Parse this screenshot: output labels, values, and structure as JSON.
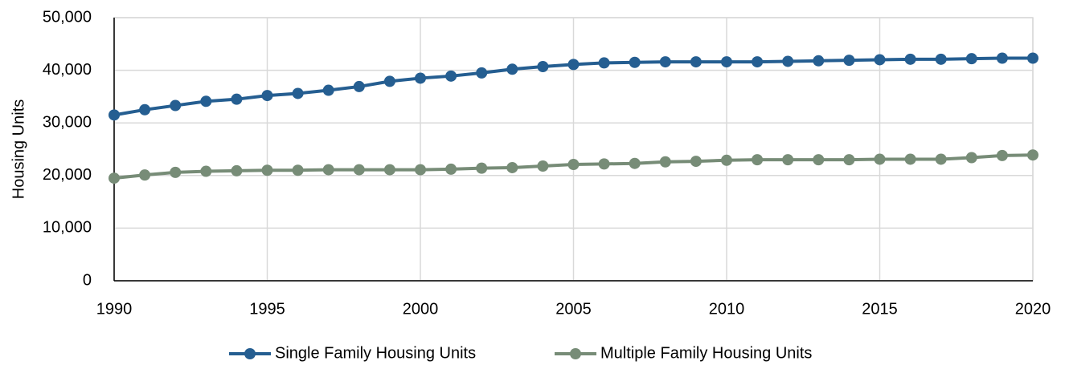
{
  "chart_data": {
    "type": "line",
    "y_label": "Housing Units",
    "x": [
      1990,
      1991,
      1992,
      1993,
      1994,
      1995,
      1996,
      1997,
      1998,
      1999,
      2000,
      2001,
      2002,
      2003,
      2004,
      2005,
      2006,
      2007,
      2008,
      2009,
      2010,
      2011,
      2012,
      2013,
      2014,
      2015,
      2016,
      2017,
      2018,
      2019,
      2020
    ],
    "series": [
      {
        "name": "Single Family Housing Units",
        "color": "#255e91",
        "values": [
          31500,
          32500,
          33300,
          34100,
          34500,
          35200,
          35600,
          36200,
          36900,
          37900,
          38500,
          38900,
          39500,
          40200,
          40700,
          41100,
          41400,
          41500,
          41600,
          41600,
          41600,
          41600,
          41700,
          41800,
          41900,
          42000,
          42100,
          42100,
          42200,
          42300,
          42300
        ]
      },
      {
        "name": "Multiple Family Housing Units",
        "color": "#778c77",
        "values": [
          19500,
          20100,
          20600,
          20800,
          20900,
          21000,
          21000,
          21100,
          21100,
          21100,
          21100,
          21200,
          21400,
          21500,
          21800,
          22100,
          22200,
          22300,
          22600,
          22700,
          22900,
          23000,
          23000,
          23000,
          23000,
          23100,
          23100,
          23100,
          23400,
          23800,
          23900
        ]
      }
    ],
    "xlim": [
      1990,
      2020
    ],
    "xticks": [
      1990,
      1995,
      2000,
      2005,
      2010,
      2015,
      2020
    ],
    "ylim": [
      0,
      50000
    ],
    "yticks": [
      0,
      {
        "value": 10000,
        "label": "10,000"
      },
      {
        "value": 20000,
        "label": "20,000"
      },
      {
        "value": 30000,
        "label": "30,000"
      },
      {
        "value": 40000,
        "label": "40,000"
      },
      {
        "value": 50000,
        "label": "50,000"
      }
    ],
    "grid": true,
    "legend": "bottom"
  }
}
